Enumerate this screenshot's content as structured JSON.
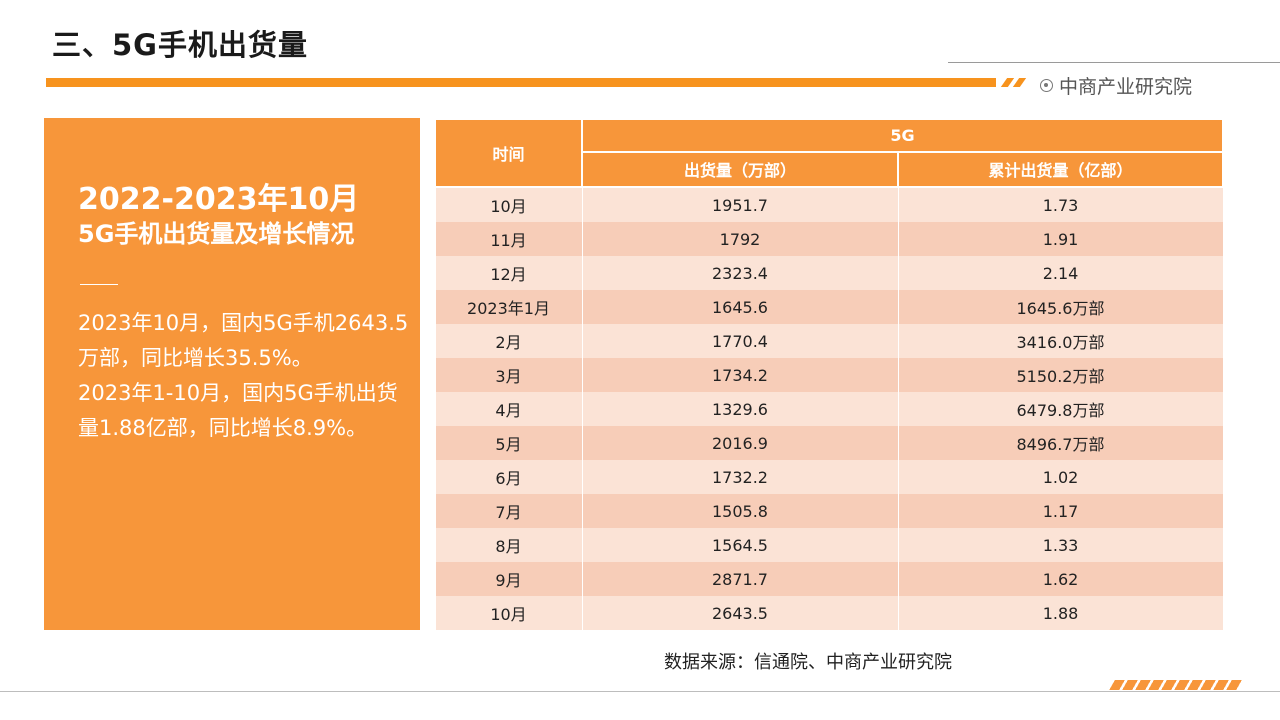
{
  "page": {
    "title": "三、5G手机出货量",
    "brand": "中商产业研究院",
    "source": "数据来源：信通院、中商产业研究院"
  },
  "panel": {
    "heading1": "2022-2023年10月",
    "heading2": "5G手机出货量及增长情况",
    "para1": "2023年10月，国内5G手机2643.5万部，同比增长35.5%。",
    "para2": "2023年1-10月，国内5G手机出货量1.88亿部，同比增长8.9%。"
  },
  "table": {
    "header_time": "时间",
    "header_group": "5G",
    "header_col1": "出货量（万部）",
    "header_col2": "累计出货量（亿部）",
    "rows": [
      {
        "time": "10月",
        "shipment": "1951.7",
        "cumulative": "1.73"
      },
      {
        "time": "11月",
        "shipment": "1792",
        "cumulative": "1.91"
      },
      {
        "time": "12月",
        "shipment": "2323.4",
        "cumulative": "2.14"
      },
      {
        "time": "2023年1月",
        "shipment": "1645.6",
        "cumulative": "1645.6万部"
      },
      {
        "time": "2月",
        "shipment": "1770.4",
        "cumulative": "3416.0万部"
      },
      {
        "time": "3月",
        "shipment": "1734.2",
        "cumulative": "5150.2万部"
      },
      {
        "time": "4月",
        "shipment": "1329.6",
        "cumulative": "6479.8万部"
      },
      {
        "time": "5月",
        "shipment": "2016.9",
        "cumulative": "8496.7万部"
      },
      {
        "time": "6月",
        "shipment": "1732.2",
        "cumulative": "1.02"
      },
      {
        "time": "7月",
        "shipment": "1505.8",
        "cumulative": "1.17"
      },
      {
        "time": "8月",
        "shipment": "1564.5",
        "cumulative": "1.33"
      },
      {
        "time": "9月",
        "shipment": "2871.7",
        "cumulative": "1.62"
      },
      {
        "time": "10月",
        "shipment": "2643.5",
        "cumulative": "1.88"
      }
    ]
  },
  "colors": {
    "accent": "#f7963a",
    "row_light": "#fbe3d6",
    "row_dark": "#f7cdb8"
  }
}
